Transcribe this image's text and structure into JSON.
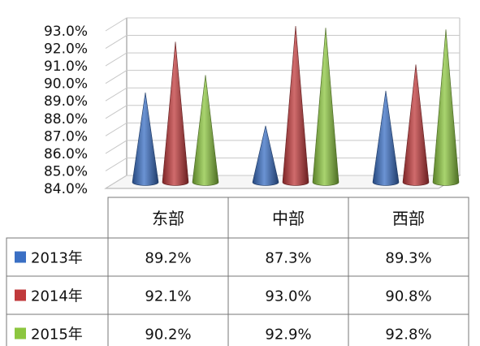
{
  "chart_data": {
    "type": "bar",
    "style": "3d-cone",
    "categories": [
      "东部",
      "中部",
      "西部"
    ],
    "series": [
      {
        "name": "2013年",
        "values": [
          89.2,
          87.3,
          89.3
        ],
        "labels": [
          "89.2%",
          "87.3%",
          "89.3%"
        ],
        "color": "#3a6fc4"
      },
      {
        "name": "2014年",
        "values": [
          92.1,
          93.0,
          90.8
        ],
        "labels": [
          "92.1%",
          "93.0%",
          "90.8%"
        ],
        "color": "#c0393b"
      },
      {
        "name": "2015年",
        "values": [
          90.2,
          92.9,
          92.8
        ],
        "labels": [
          "90.2%",
          "92.9%",
          "92.8%"
        ],
        "color": "#8cc63f"
      }
    ],
    "ylim": [
      84,
      93
    ],
    "ytick_labels": [
      "84.0%",
      "85.0%",
      "86.0%",
      "87.0%",
      "88.0%",
      "89.0%",
      "90.0%",
      "91.0%",
      "92.0%",
      "93.0%"
    ],
    "grid": true,
    "data_table": true,
    "legend": "data-table"
  }
}
